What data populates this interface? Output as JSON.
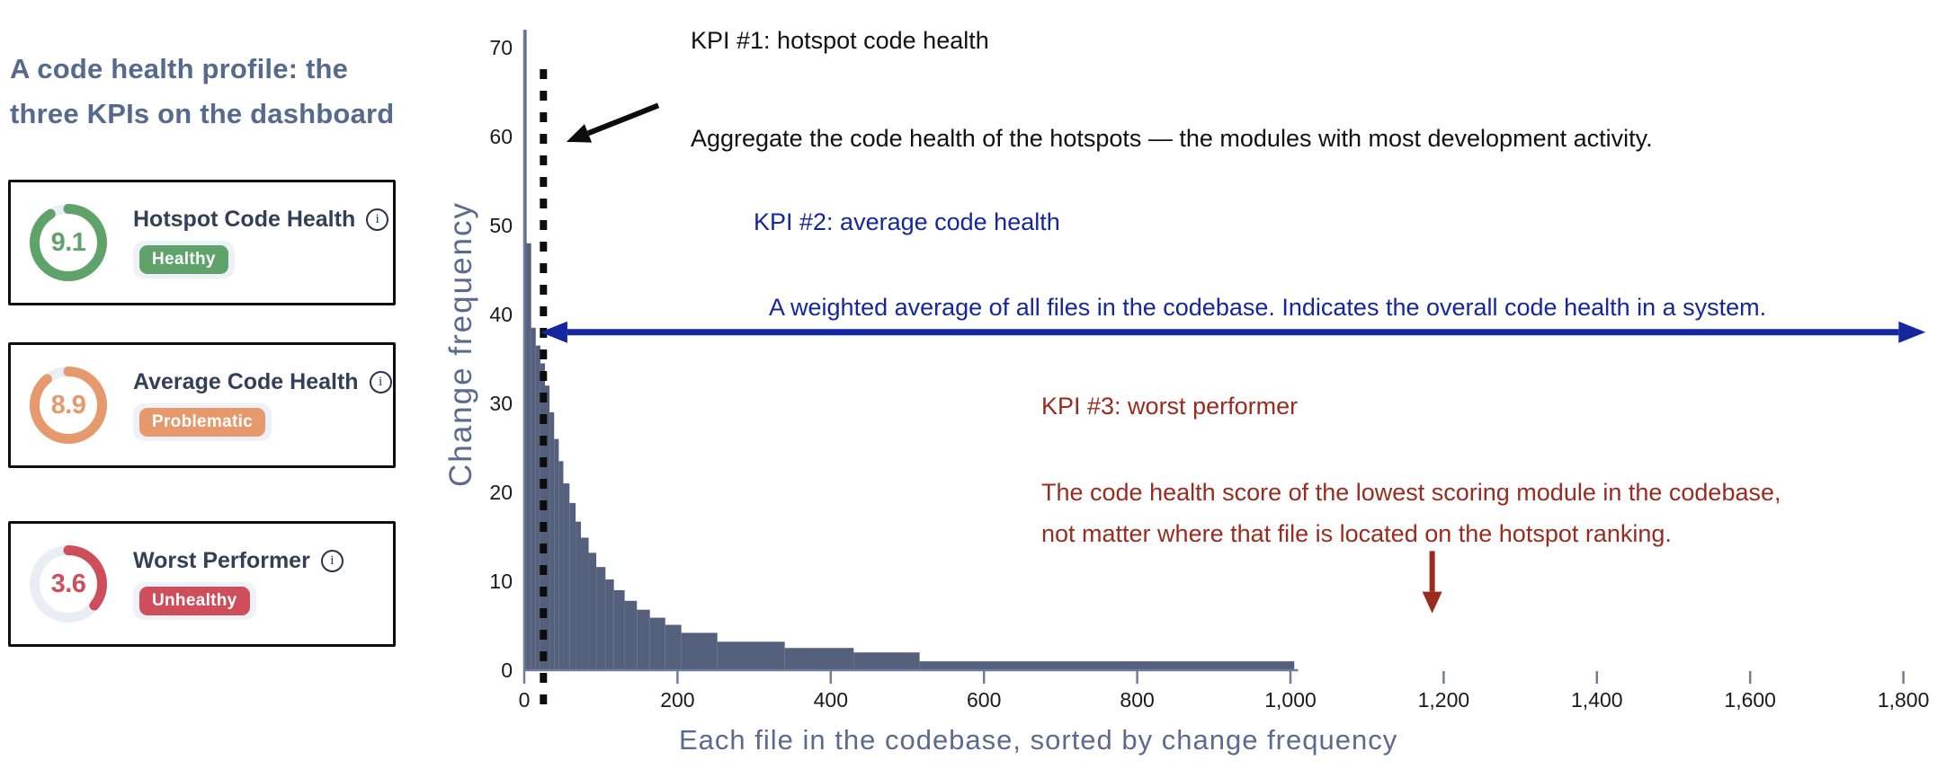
{
  "page": {
    "title": "A code health profile: the three KPIs on the dashboard",
    "title_lines": [
      "A code health profile: the",
      "three KPIs on the dashboard"
    ],
    "title_color": "#566a8e"
  },
  "kpi_cards": [
    {
      "label": "Hotspot Code Health",
      "value": "9.1",
      "percent": 91,
      "status": "Healthy",
      "color": "#5fa36b",
      "track_color": "#e9edf4",
      "info_icon": "info-icon"
    },
    {
      "label": "Average Code Health",
      "value": "8.9",
      "percent": 89,
      "status": "Problematic",
      "color": "#e5996c",
      "track_color": "#e9edf4",
      "info_icon": "info-icon"
    },
    {
      "label": "Worst Performer",
      "value": "3.6",
      "percent": 36,
      "status": "Unhealthy",
      "color": "#cf4e5b",
      "track_color": "#e9edf4",
      "info_icon": "info-icon"
    }
  ],
  "chart_data": {
    "type": "bar",
    "title": "",
    "xlabel": "Each file in the codebase, sorted by change frequency",
    "ylabel": "Change frequency",
    "xlim": [
      0,
      1850
    ],
    "ylim": [
      0,
      72
    ],
    "x_ticks": [
      0,
      200,
      400,
      600,
      800,
      1000,
      1200,
      1400,
      1600,
      1800
    ],
    "x_tick_labels": [
      "0",
      "200",
      "400",
      "600",
      "800",
      "1,000",
      "1,200",
      "1,400",
      "1,600",
      "1,800"
    ],
    "y_ticks": [
      0,
      10,
      20,
      30,
      40,
      50,
      60,
      70
    ],
    "grid": false,
    "legend": false,
    "bar_color": "#54607c",
    "axis_color": "#6e7d9c",
    "tick_label_color": "#1a1a1a",
    "x_axis_end": 1010,
    "bars": [
      [
        0,
        3,
        72
      ],
      [
        3,
        9,
        48
      ],
      [
        9,
        15,
        38.5
      ],
      [
        15,
        21,
        36.5
      ],
      [
        21,
        27,
        34.5
      ],
      [
        27,
        33,
        32
      ],
      [
        33,
        39,
        29
      ],
      [
        39,
        45,
        26
      ],
      [
        45,
        51,
        23.5
      ],
      [
        51,
        59,
        21
      ],
      [
        59,
        67,
        18.8
      ],
      [
        67,
        74,
        16.7
      ],
      [
        74,
        84,
        14.9
      ],
      [
        84,
        94,
        13.2
      ],
      [
        94,
        106,
        11.6
      ],
      [
        106,
        117,
        10.2
      ],
      [
        117,
        131,
        9
      ],
      [
        131,
        147,
        7.8
      ],
      [
        147,
        164,
        6.8
      ],
      [
        164,
        184,
        5.9
      ],
      [
        184,
        205,
        5.1
      ],
      [
        205,
        252,
        4.2
      ],
      [
        252,
        340,
        3.2
      ],
      [
        340,
        430,
        2.5
      ],
      [
        430,
        516,
        2
      ],
      [
        516,
        1005,
        1
      ]
    ],
    "hotspot_cutoff_x": 25,
    "hotspot_arrow": {
      "x_from": 175,
      "y_from": 63.5,
      "x_to": 55,
      "y_to": 59.4,
      "color": "#0d0d0d"
    },
    "average_arrow": {
      "x_from": 21,
      "x_to": 1829,
      "y": 38,
      "color": "#14279f"
    },
    "worst_performer_arrow": {
      "x": 1185,
      "y_from": 13.4,
      "y_to": 6.4,
      "color": "#9a2b1e"
    },
    "annotations": {
      "kpi1": {
        "title": "KPI #1: hotspot code health",
        "desc": "Aggregate the code health of the hotspots — the modules with most development activity.",
        "color": "#111111"
      },
      "kpi2": {
        "title": "KPI #2: average code health",
        "desc": "A weighted average of all files in the codebase. Indicates the overall code health in a system.",
        "color": "#14279f"
      },
      "kpi3": {
        "title": "KPI #3: worst performer",
        "desc_lines": [
          "The code health score of the lowest scoring module in the codebase,",
          "not matter where that file is located on the hotspot ranking."
        ],
        "color": "#9a2b1e"
      }
    }
  }
}
